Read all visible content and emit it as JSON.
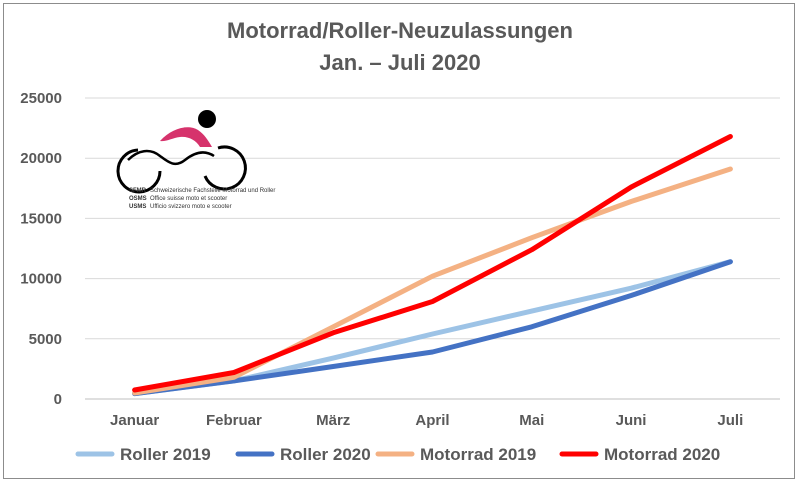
{
  "chart_data": {
    "type": "line",
    "title": "Motorrad/Roller-Neuzulassungen",
    "subtitle": "Jan. – Juli 2020",
    "categories": [
      "Januar",
      "Februar",
      "März",
      "April",
      "Mai",
      "Juni",
      "Juli"
    ],
    "y_ticks": [
      "0",
      "5000",
      "10000",
      "15000",
      "20000",
      "25000"
    ],
    "ylim": [
      0,
      25000
    ],
    "grid": true,
    "legend_position": "bottom",
    "series": [
      {
        "name": "Roller 2019",
        "color": "#9dc3e6",
        "values": [
          450,
          1500,
          3400,
          5400,
          7300,
          9200,
          11400
        ]
      },
      {
        "name": "Roller 2020",
        "color": "#4472c4",
        "values": [
          450,
          1500,
          2700,
          3900,
          6000,
          8600,
          11400
        ]
      },
      {
        "name": "Motorrad 2019",
        "color": "#f4b183",
        "values": [
          500,
          1800,
          6000,
          10200,
          13400,
          16400,
          19100
        ]
      },
      {
        "name": "Motorrad 2020",
        "color": "#ff0000",
        "values": [
          750,
          2200,
          5500,
          8100,
          12400,
          17600,
          21800
        ]
      }
    ]
  },
  "logo": {
    "name": "motorcycle-logo",
    "lines": [
      {
        "abbr": "SFMR",
        "text": "Schweizerische Fachstelle Motorrad und Roller"
      },
      {
        "abbr": "OSMS",
        "text": "Office suisse moto et scooter"
      },
      {
        "abbr": "USMS",
        "text": "Ufficio svizzero moto e scooter"
      }
    ]
  }
}
